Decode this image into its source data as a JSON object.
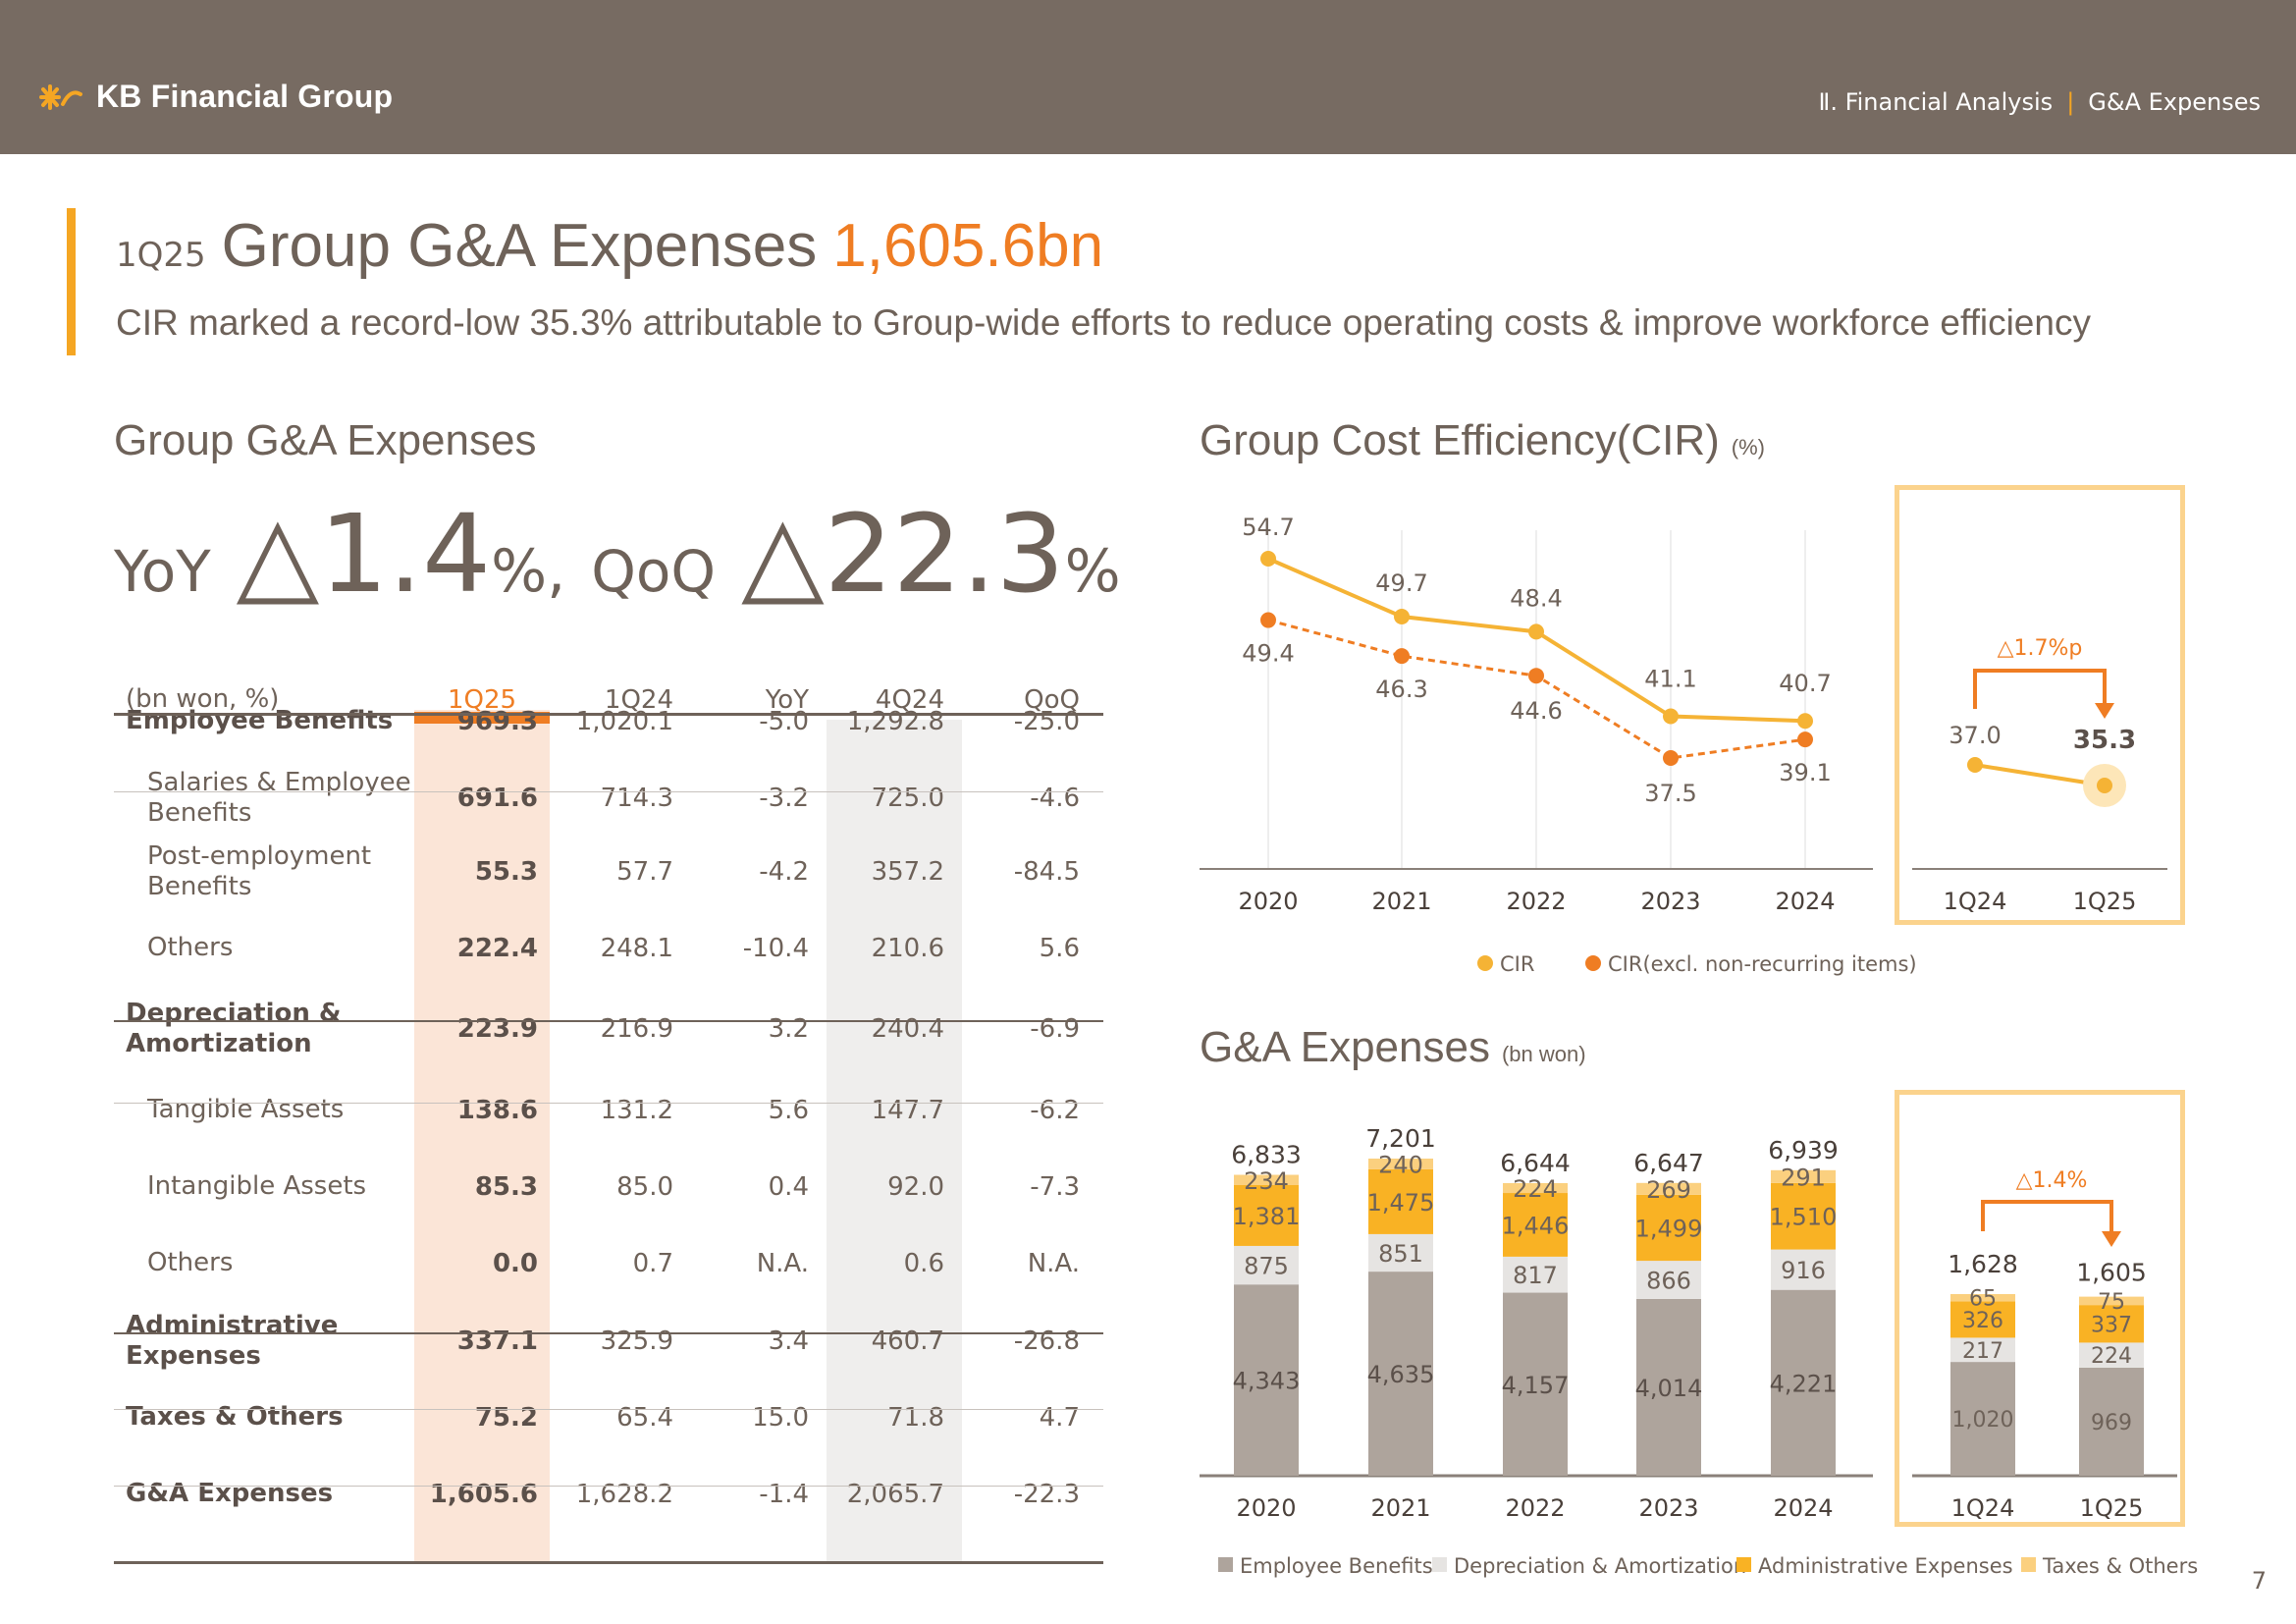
{
  "header": {
    "logo_text": "KB Financial Group",
    "breadcrumb_section": "Ⅱ. Financial Analysis",
    "breadcrumb_separator": "|",
    "breadcrumb_page": "G&A Expenses"
  },
  "title": {
    "quarter": "1Q25",
    "main": "Group G&A Expenses",
    "value": "1,605.6bn",
    "subtitle": "CIR marked a record-low 35.3% attributable to Group-wide efforts to reduce operating costs & improve workforce efficiency"
  },
  "left_section": {
    "title": "Group G&A Expenses",
    "yoy_label": "YoY",
    "yoy_value": "△1.4",
    "yoy_suffix": "%,",
    "qoq_label": "QoQ",
    "qoq_value": "△22.3",
    "qoq_suffix": "%"
  },
  "table": {
    "headers": [
      "(bn won, %)",
      "1Q25",
      "1Q24",
      "YoY",
      "4Q24",
      "QoQ"
    ],
    "rows": [
      {
        "label": "Employee Benefits",
        "type": "main",
        "values": [
          "969.3",
          "1,020.1",
          "-5.0",
          "1,292.8",
          "-25.0"
        ]
      },
      {
        "label": "Salaries & Employee Benefits",
        "type": "sub",
        "values": [
          "691.6",
          "714.3",
          "-3.2",
          "725.0",
          "-4.6"
        ]
      },
      {
        "label": "Post-employment Benefits",
        "type": "sub",
        "values": [
          "55.3",
          "57.7",
          "-4.2",
          "357.2",
          "-84.5"
        ]
      },
      {
        "label": "Others",
        "type": "sub",
        "values": [
          "222.4",
          "248.1",
          "-10.4",
          "210.6",
          "5.6"
        ]
      },
      {
        "label": "Depreciation & Amortization",
        "type": "main",
        "values": [
          "223.9",
          "216.9",
          "3.2",
          "240.4",
          "-6.9"
        ]
      },
      {
        "label": "Tangible Assets",
        "type": "sub",
        "values": [
          "138.6",
          "131.2",
          "5.6",
          "147.7",
          "-6.2"
        ]
      },
      {
        "label": "Intangible Assets",
        "type": "sub",
        "values": [
          "85.3",
          "85.0",
          "0.4",
          "92.0",
          "-7.3"
        ]
      },
      {
        "label": "Others",
        "type": "sub",
        "values": [
          "0.0",
          "0.7",
          "N.A.",
          "0.6",
          "N.A."
        ]
      },
      {
        "label": "Administrative Expenses",
        "type": "main",
        "values": [
          "337.1",
          "325.9",
          "3.4",
          "460.7",
          "-26.8"
        ]
      },
      {
        "label": "Taxes & Others",
        "type": "main",
        "values": [
          "75.2",
          "65.4",
          "15.0",
          "71.8",
          "4.7"
        ]
      },
      {
        "label": "G&A Expenses",
        "type": "main",
        "values": [
          "1,605.6",
          "1,628.2",
          "-1.4",
          "2,065.7",
          "-22.3"
        ]
      }
    ]
  },
  "cir_section": {
    "title": "Group Cost Efficiency(CIR)",
    "unit": "(%)",
    "colors": {
      "cir": "#f5b335",
      "cir_excl": "#ef7d23"
    }
  },
  "ga_section": {
    "title": "G&A Expenses",
    "unit": "(bn won)",
    "colors": {
      "employee": "#aea49c",
      "depreciation": "#e6e4e2",
      "administrative": "#f9b224",
      "taxes": "#fbd07f"
    }
  },
  "chart_data": [
    {
      "type": "line",
      "title": "Group Cost Efficiency(CIR)",
      "unit": "(%)",
      "categories": [
        "2020",
        "2021",
        "2022",
        "2023",
        "2024"
      ],
      "series": [
        {
          "name": "CIR",
          "values": [
            54.7,
            49.7,
            48.4,
            41.1,
            40.7
          ]
        },
        {
          "name": "CIR(excl. non-recurring items)",
          "values": [
            49.4,
            46.3,
            44.6,
            37.5,
            39.1
          ]
        }
      ],
      "labels_cir": [
        "54.7",
        "49.7",
        "48.4",
        "41.1",
        "40.7"
      ],
      "labels_excl": [
        "49.4",
        "46.3",
        "44.6",
        "37.5",
        "39.1"
      ],
      "legend": [
        "CIR",
        "CIR(excl. non-recurring items)"
      ]
    },
    {
      "type": "line",
      "categories": [
        "1Q24",
        "1Q25"
      ],
      "series": [
        {
          "name": "CIR",
          "values": [
            37.0,
            35.3
          ]
        }
      ],
      "labels": [
        "37.0",
        "35.3"
      ],
      "annotation": "△1.7%p"
    },
    {
      "type": "bar",
      "stacked": true,
      "title": "G&A Expenses",
      "unit": "(bn won)",
      "categories": [
        "2020",
        "2021",
        "2022",
        "2023",
        "2024"
      ],
      "series": [
        {
          "name": "Employee Benefits",
          "values": [
            4343,
            4635,
            4157,
            4014,
            4221
          ]
        },
        {
          "name": "Depreciation & Amortization",
          "values": [
            875,
            851,
            817,
            866,
            916
          ]
        },
        {
          "name": "Administrative Expenses",
          "values": [
            1381,
            1475,
            1446,
            1499,
            1510
          ]
        },
        {
          "name": "Taxes & Others",
          "values": [
            234,
            240,
            224,
            269,
            291
          ]
        }
      ],
      "totals": [
        "6,833",
        "7,201",
        "6,644",
        "6,647",
        "6,939"
      ],
      "seg_labels": [
        [
          "4,343",
          "875",
          "1,381",
          "234"
        ],
        [
          "4,635",
          "851",
          "1,475",
          "240"
        ],
        [
          "4,157",
          "817",
          "1,446",
          "224"
        ],
        [
          "4,014",
          "866",
          "1,499",
          "269"
        ],
        [
          "4,221",
          "916",
          "1,510",
          "291"
        ]
      ],
      "legend": [
        "Employee Benefits",
        "Depreciation & Amortization",
        "Administrative Expenses",
        "Taxes & Others"
      ]
    },
    {
      "type": "bar",
      "stacked": true,
      "categories": [
        "1Q24",
        "1Q25"
      ],
      "series": [
        {
          "name": "Employee Benefits",
          "values": [
            1020,
            969
          ]
        },
        {
          "name": "Depreciation & Amortization",
          "values": [
            217,
            224
          ]
        },
        {
          "name": "Administrative Expenses",
          "values": [
            326,
            337
          ]
        },
        {
          "name": "Taxes & Others",
          "values": [
            65,
            75
          ]
        }
      ],
      "totals": [
        "1,628",
        "1,605"
      ],
      "seg_labels": [
        [
          "1,020",
          "217",
          "326",
          "65"
        ],
        [
          "969",
          "224",
          "337",
          "75"
        ]
      ],
      "annotation": "△1.4%"
    }
  ],
  "page_number": "7"
}
